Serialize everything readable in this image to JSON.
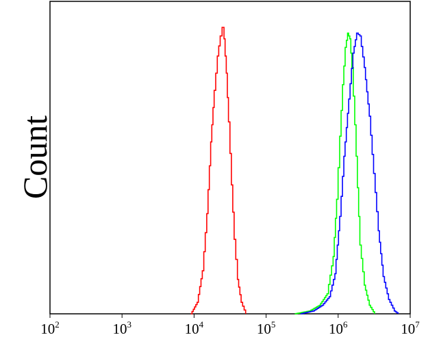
{
  "chart_data": {
    "type": "line",
    "xscale": "log",
    "xlim": [
      100,
      10000000
    ],
    "ylim": [
      0,
      1.0
    ],
    "xlabel": "",
    "ylabel": "Count",
    "grid": false,
    "legend": "none",
    "x_ticks": [
      {
        "base": "10",
        "exp": "2",
        "value": 100
      },
      {
        "base": "10",
        "exp": "3",
        "value": 1000
      },
      {
        "base": "10",
        "exp": "4",
        "value": 10000
      },
      {
        "base": "10",
        "exp": "5",
        "value": 100000
      },
      {
        "base": "10",
        "exp": "6",
        "value": 1000000
      },
      {
        "base": "10",
        "exp": "7",
        "value": 10000000
      }
    ],
    "series": [
      {
        "color": "#ff0000",
        "points": [
          [
            9000,
            0
          ],
          [
            11000,
            0.04
          ],
          [
            13000,
            0.15
          ],
          [
            15000,
            0.35
          ],
          [
            17000,
            0.6
          ],
          [
            19000,
            0.78
          ],
          [
            21000,
            0.9
          ],
          [
            23000,
            0.97
          ],
          [
            24500,
            1.0
          ],
          [
            26000,
            0.96
          ],
          [
            28000,
            0.84
          ],
          [
            30000,
            0.67
          ],
          [
            33000,
            0.45
          ],
          [
            36000,
            0.26
          ],
          [
            40000,
            0.12
          ],
          [
            45000,
            0.04
          ],
          [
            52000,
            0.0
          ]
        ]
      },
      {
        "color": "#00ff00",
        "points": [
          [
            250000,
            0
          ],
          [
            400000,
            0.01
          ],
          [
            550000,
            0.03
          ],
          [
            700000,
            0.07
          ],
          [
            850000,
            0.2
          ],
          [
            950000,
            0.4
          ],
          [
            1050000,
            0.62
          ],
          [
            1150000,
            0.8
          ],
          [
            1250000,
            0.93
          ],
          [
            1350000,
            0.98
          ],
          [
            1450000,
            0.96
          ],
          [
            1550000,
            0.86
          ],
          [
            1700000,
            0.66
          ],
          [
            1850000,
            0.44
          ],
          [
            2000000,
            0.24
          ],
          [
            2300000,
            0.1
          ],
          [
            2700000,
            0.03
          ],
          [
            3200000,
            0.0
          ]
        ]
      },
      {
        "color": "#0000ff",
        "points": [
          [
            300000,
            0
          ],
          [
            450000,
            0.01
          ],
          [
            600000,
            0.03
          ],
          [
            750000,
            0.06
          ],
          [
            900000,
            0.14
          ],
          [
            1050000,
            0.34
          ],
          [
            1200000,
            0.55
          ],
          [
            1400000,
            0.75
          ],
          [
            1600000,
            0.91
          ],
          [
            1800000,
            0.98
          ],
          [
            2000000,
            0.97
          ],
          [
            2300000,
            0.86
          ],
          [
            2700000,
            0.69
          ],
          [
            3100000,
            0.49
          ],
          [
            3600000,
            0.29
          ],
          [
            4200000,
            0.13
          ],
          [
            5000000,
            0.05
          ],
          [
            6000000,
            0.01
          ],
          [
            6800000,
            0.0
          ]
        ]
      }
    ]
  }
}
